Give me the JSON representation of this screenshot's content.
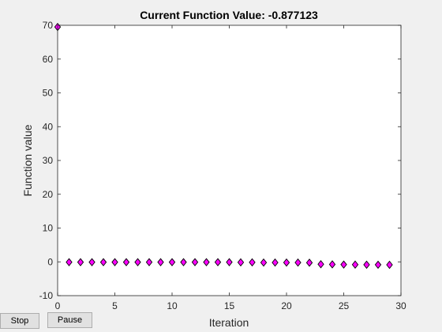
{
  "controls": {
    "stop_label": "Stop",
    "pause_label": "Pause"
  },
  "colors": {
    "marker_fill": "#ff00ff",
    "marker_edge": "#000000",
    "axes_bg": "#ffffff",
    "figure_bg": "#f0f0f0"
  },
  "chart_data": {
    "type": "scatter",
    "title": "Current Function Value: -0.877123",
    "xlabel": "Iteration",
    "ylabel": "Function value",
    "xlim": [
      0,
      30
    ],
    "ylim": [
      -10,
      70
    ],
    "xticks": [
      0,
      5,
      10,
      15,
      20,
      25,
      30
    ],
    "yticks": [
      -10,
      0,
      10,
      20,
      30,
      40,
      50,
      60,
      70
    ],
    "grid": false,
    "marker": "diamond",
    "x": [
      0,
      1,
      2,
      3,
      4,
      5,
      6,
      7,
      8,
      9,
      10,
      11,
      12,
      13,
      14,
      15,
      16,
      17,
      18,
      19,
      20,
      21,
      22,
      23,
      24,
      25,
      26,
      27,
      28,
      29
    ],
    "y": [
      69.5,
      -0.1,
      -0.1,
      -0.1,
      -0.1,
      -0.1,
      -0.1,
      -0.1,
      -0.1,
      -0.1,
      -0.1,
      -0.1,
      -0.1,
      -0.1,
      -0.1,
      -0.1,
      -0.15,
      -0.15,
      -0.2,
      -0.2,
      -0.2,
      -0.2,
      -0.25,
      -0.7,
      -0.75,
      -0.8,
      -0.82,
      -0.85,
      -0.86,
      -0.877
    ]
  }
}
